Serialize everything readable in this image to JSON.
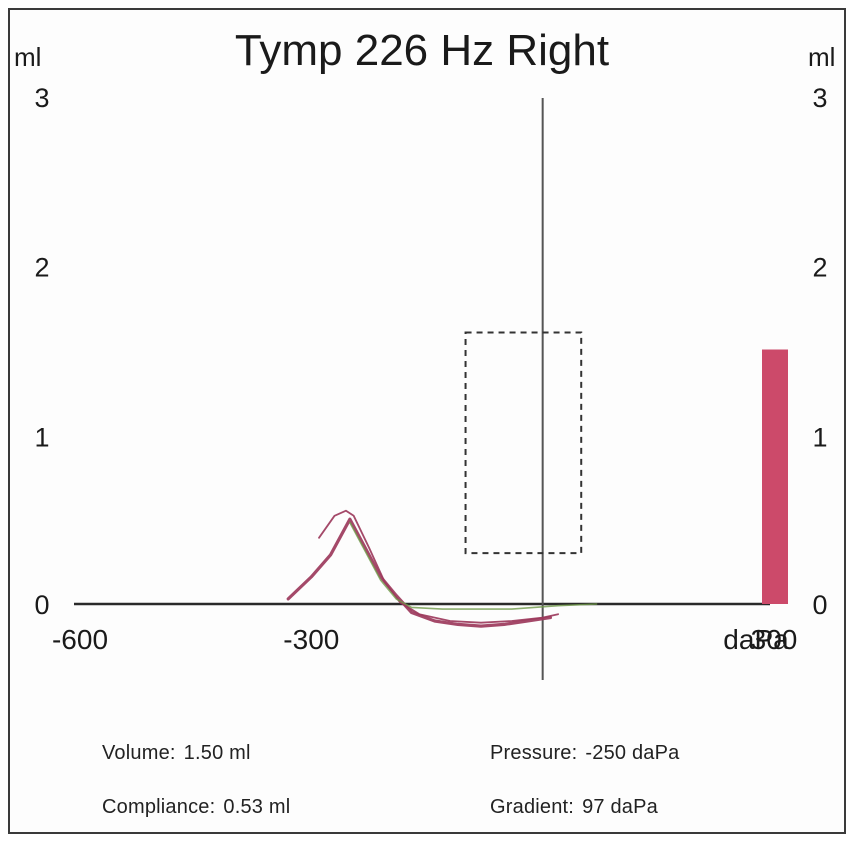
{
  "chart_data": {
    "type": "line",
    "title": "Tymp 226 Hz Right",
    "y_unit_left": "ml",
    "y_unit_right": "ml",
    "x_unit": "daPa",
    "xlim": [
      -600,
      300
    ],
    "ylim": [
      0,
      3
    ],
    "x_ticks": [
      {
        "value": -600,
        "label": "-600"
      },
      {
        "value": -300,
        "label": "-300"
      },
      {
        "value": 300,
        "label": "300"
      }
    ],
    "y_ticks": [
      {
        "value": 0,
        "label": "0"
      },
      {
        "value": 1,
        "label": "1"
      },
      {
        "value": 2,
        "label": "2"
      },
      {
        "value": 3,
        "label": "3"
      }
    ],
    "series": [
      {
        "color": "#9c3a5c",
        "points": [
          [
            -330,
            0.03
          ],
          [
            -300,
            0.16
          ],
          [
            -275,
            0.29
          ],
          [
            -250,
            0.5
          ],
          [
            -230,
            0.33
          ],
          [
            -210,
            0.16
          ],
          [
            -190,
            0.05
          ],
          [
            -170,
            -0.05
          ],
          [
            -140,
            -0.1
          ],
          [
            -110,
            -0.12
          ],
          [
            -80,
            -0.13
          ],
          [
            -50,
            -0.12
          ],
          [
            -20,
            -0.1
          ],
          [
            10,
            -0.08
          ]
        ]
      },
      {
        "color": "#9c3a5c",
        "points": [
          [
            -290,
            0.39
          ],
          [
            -270,
            0.52
          ],
          [
            -255,
            0.55
          ],
          [
            -245,
            0.52
          ],
          [
            -225,
            0.33
          ],
          [
            -205,
            0.13
          ],
          [
            -185,
            0.01
          ],
          [
            -160,
            -0.06
          ],
          [
            -120,
            -0.1
          ],
          [
            -80,
            -0.11
          ],
          [
            -40,
            -0.1
          ],
          [
            0,
            -0.08
          ],
          [
            20,
            -0.06
          ]
        ]
      },
      {
        "color": "#6f9a4a",
        "points": [
          [
            -250,
            0.48
          ],
          [
            -230,
            0.31
          ],
          [
            -210,
            0.14
          ],
          [
            -190,
            0.03
          ],
          [
            -170,
            -0.02
          ],
          [
            -130,
            -0.03
          ],
          [
            -90,
            -0.03
          ],
          [
            -40,
            -0.03
          ],
          [
            20,
            -0.01
          ],
          [
            70,
            0.0
          ]
        ]
      }
    ],
    "normative_region": {
      "x_min": -100,
      "x_max": 50,
      "y_min": 0.3,
      "y_max": 1.6
    },
    "volume_bar": {
      "x": 300,
      "value": 1.5,
      "color": "#cc4a6a"
    },
    "vertical_reference_x": 0,
    "grid": false
  },
  "info": {
    "volume_label": "Volume:",
    "volume_value": "1.50 ml",
    "compliance_label": "Compliance:",
    "compliance_value": "0.53 ml",
    "pressure_label": "Pressure:",
    "pressure_value": "-250 daPa",
    "gradient_label": "Gradient:",
    "gradient_value": "97 daPa"
  }
}
